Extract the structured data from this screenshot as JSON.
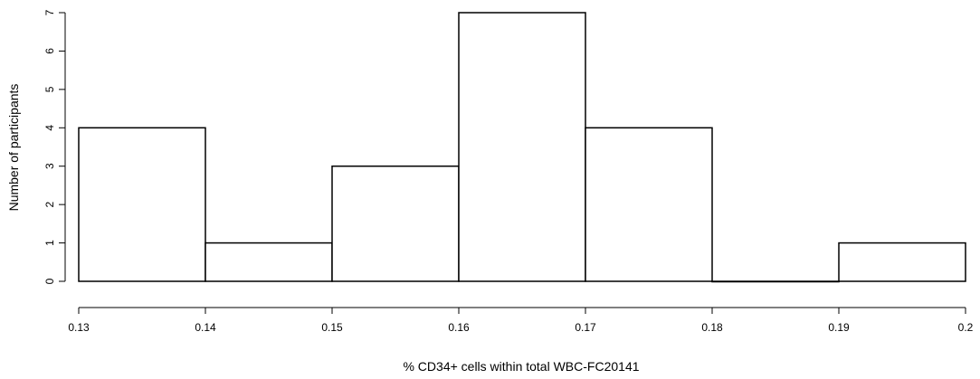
{
  "chart_data": {
    "type": "bar",
    "subtype": "histogram",
    "title": "",
    "xlabel": "% CD34+ cells within total WBC-FC20141",
    "ylabel": "Number of participants",
    "bins": [
      {
        "start": 0.13,
        "end": 0.14,
        "count": 4
      },
      {
        "start": 0.14,
        "end": 0.15,
        "count": 1
      },
      {
        "start": 0.15,
        "end": 0.16,
        "count": 3
      },
      {
        "start": 0.16,
        "end": 0.17,
        "count": 7
      },
      {
        "start": 0.17,
        "end": 0.18,
        "count": 4
      },
      {
        "start": 0.18,
        "end": 0.19,
        "count": 0
      },
      {
        "start": 0.19,
        "end": 0.2,
        "count": 1
      }
    ],
    "xlim": [
      0.13,
      0.2
    ],
    "ylim": [
      0,
      7
    ],
    "x_ticks": [
      "0.13",
      "0.14",
      "0.15",
      "0.16",
      "0.17",
      "0.18",
      "0.19",
      "0.2"
    ],
    "y_ticks": [
      "0",
      "1",
      "2",
      "3",
      "4",
      "5",
      "6",
      "7"
    ],
    "grid": false,
    "bar_fill": "#ffffff",
    "bar_stroke": "#000000"
  }
}
